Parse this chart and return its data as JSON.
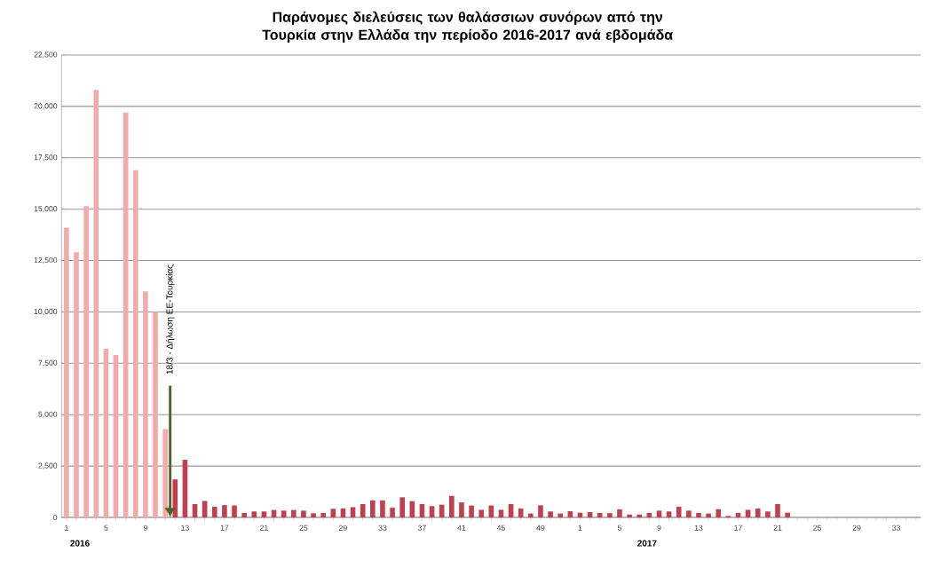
{
  "chart_data": {
    "type": "bar",
    "title": "Παράνομες διελεύσεις των θαλάσσιων συνόρων από την Τουρκία στην Ελλάδα την περίοδο 2016-2017 ανά εβδομάδα",
    "categories": [
      "1",
      null,
      null,
      null,
      "5",
      null,
      null,
      null,
      "9",
      null,
      null,
      null,
      "13",
      null,
      null,
      null,
      "17",
      null,
      null,
      null,
      "21",
      null,
      null,
      null,
      "25",
      null,
      null,
      null,
      "29",
      null,
      null,
      null,
      "33",
      null,
      null,
      null,
      "37",
      null,
      null,
      null,
      "41",
      null,
      null,
      null,
      "45",
      null,
      null,
      null,
      "49",
      null,
      null,
      null,
      "1",
      null,
      null,
      null,
      "5",
      null,
      null,
      null,
      "9",
      null,
      null,
      null,
      "13",
      null,
      null,
      null,
      "17",
      null,
      null,
      null,
      "21",
      null,
      null,
      null,
      "25",
      null,
      null,
      null,
      "29",
      null,
      null,
      null,
      "33",
      null,
      null
    ],
    "values": [
      14100,
      12900,
      15150,
      20800,
      8200,
      7900,
      19700,
      16900,
      11000,
      10000,
      4300,
      1850,
      2800,
      650,
      800,
      520,
      600,
      580,
      220,
      290,
      290,
      360,
      330,
      360,
      330,
      200,
      220,
      420,
      440,
      500,
      650,
      830,
      830,
      470,
      980,
      790,
      650,
      550,
      620,
      1050,
      730,
      580,
      370,
      580,
      370,
      650,
      430,
      190,
      590,
      290,
      190,
      300,
      230,
      260,
      220,
      210,
      390,
      140,
      140,
      220,
      330,
      290,
      520,
      330,
      220,
      190,
      400,
      70,
      220,
      370,
      430,
      290,
      650,
      230,
      null,
      null,
      null,
      null,
      null,
      null,
      null,
      null,
      null,
      null,
      null,
      null,
      null
    ],
    "colors": [
      "#f2aaaa",
      "#f2aaaa",
      "#f2aaaa",
      "#f2aaaa",
      "#f2aaaa",
      "#f2aaaa",
      "#f2aaaa",
      "#f2aaaa",
      "#f2aaaa",
      "#f2aaaa",
      "#f2aaaa",
      "#c0404f",
      "#c0404f",
      "#c0404f",
      "#c0404f",
      "#c0404f",
      "#c0404f",
      "#c0404f",
      "#c0404f",
      "#c0404f",
      "#c0404f",
      "#c0404f",
      "#c0404f",
      "#c0404f",
      "#c0404f",
      "#c0404f",
      "#c0404f",
      "#c0404f",
      "#c0404f",
      "#c0404f",
      "#c0404f",
      "#c0404f",
      "#c0404f",
      "#c0404f",
      "#c0404f",
      "#c0404f",
      "#c0404f",
      "#c0404f",
      "#c0404f",
      "#c0404f",
      "#c0404f",
      "#c0404f",
      "#c0404f",
      "#c0404f",
      "#c0404f",
      "#c0404f",
      "#c0404f",
      "#c0404f",
      "#c0404f",
      "#c0404f",
      "#c0404f",
      "#c0404f",
      "#c0404f",
      "#c0404f",
      "#c0404f",
      "#c0404f",
      "#c0404f",
      "#c0404f",
      "#c0404f",
      "#c0404f",
      "#c0404f",
      "#c0404f",
      "#c0404f",
      "#c0404f",
      "#c0404f",
      "#c0404f",
      "#c0404f",
      "#c0404f",
      "#c0404f",
      "#c0404f",
      "#c0404f",
      "#c0404f",
      "#c0404f",
      "#c0404f",
      "#c0404f",
      "#c0404f",
      "#c0404f",
      "#c0404f",
      "#c0404f",
      "#c0404f",
      "#c0404f",
      "#c0404f",
      "#c0404f",
      "#c0404f",
      "#c0404f",
      "#c0404f",
      "#c0404f"
    ],
    "ylim": [
      0,
      22500
    ],
    "yticks": [
      0,
      {
        "value": 2500,
        "label": "2,500"
      },
      {
        "value": 5000,
        "label": "5,000"
      },
      {
        "value": 7500,
        "label": "7,500"
      },
      {
        "value": 10000,
        "label": "10,000"
      },
      {
        "value": 12500,
        "label": "12,500"
      },
      {
        "value": 15000,
        "label": "15,000"
      },
      {
        "value": 17500,
        "label": "17,500"
      },
      {
        "value": 20000,
        "label": "20,000"
      },
      {
        "value": 22500,
        "label": "22,500"
      }
    ],
    "grid": "y",
    "annotations": [
      "2016",
      "2017",
      "18/3 - Δήλωση ΕΕ-Τουρκίας"
    ]
  }
}
